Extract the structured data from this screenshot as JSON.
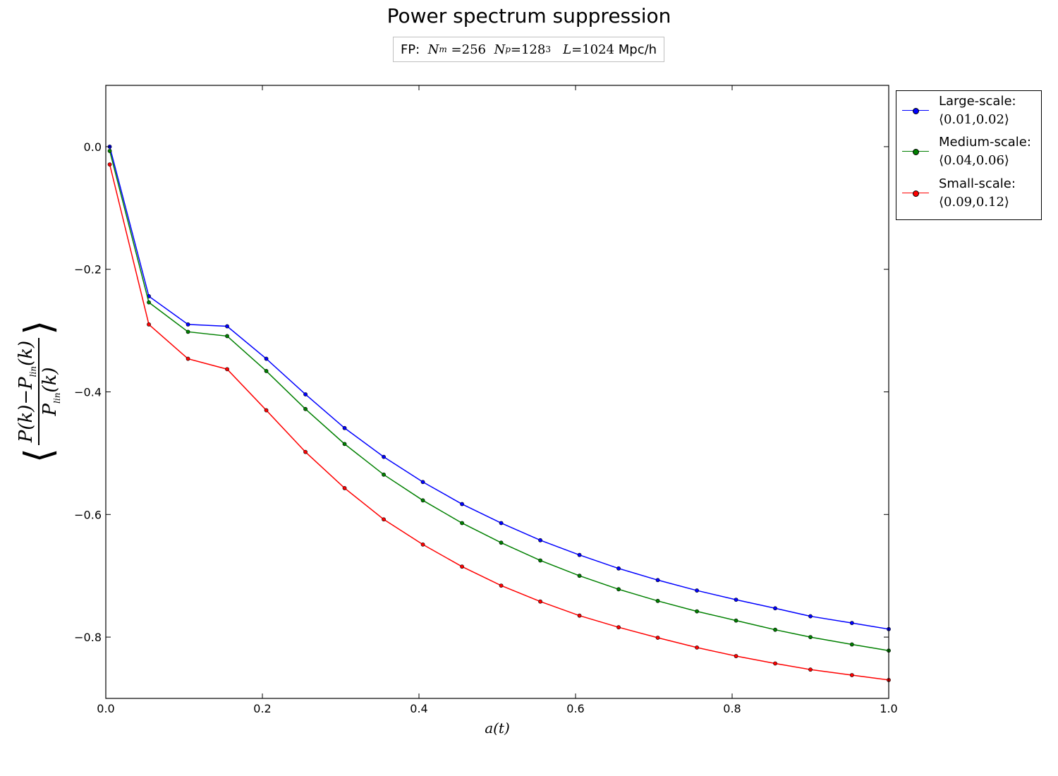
{
  "chart_data": {
    "type": "line",
    "title": "Power spectrum suppression",
    "subtitle": {
      "prefix": "FP:",
      "nm_label": "N",
      "nm_sub": "m",
      "nm_value": "=256",
      "np_label": "N",
      "np_sub": "p",
      "np_value": "=128",
      "np_exp": "3",
      "l_label": "L",
      "l_value": "=1024",
      "unit": "Mpc/h"
    },
    "xlabel": "a(t)",
    "ylabel": {
      "num": "P(k)−P",
      "num_sub": "lin",
      "num_tail": "(k)",
      "den": "P",
      "den_sub": "lin",
      "den_tail": "(k)"
    },
    "xlim": [
      0.0,
      1.0
    ],
    "ylim": [
      -0.9,
      0.1
    ],
    "xticks": [
      "0.0",
      "0.2",
      "0.4",
      "0.6",
      "0.8",
      "1.0"
    ],
    "yticks": [
      "0.0",
      "−0.2",
      "−0.4",
      "−0.6",
      "−0.8"
    ],
    "ytick_values": [
      0.0,
      -0.2,
      -0.4,
      -0.6,
      -0.8
    ],
    "xtick_values": [
      0.0,
      0.2,
      0.4,
      0.6,
      0.8,
      1.0
    ],
    "grid": false,
    "legend_position": "outside-right-top",
    "x": [
      0.005,
      0.055,
      0.105,
      0.155,
      0.205,
      0.255,
      0.305,
      0.355,
      0.405,
      0.455,
      0.505,
      0.555,
      0.605,
      0.655,
      0.705,
      0.755,
      0.805,
      0.855,
      0.9,
      0.953,
      1.0
    ],
    "series": [
      {
        "name": "Large-scale:",
        "range": "⟨0.01,0.02⟩",
        "color": "#0000ff",
        "values": [
          0.0,
          -0.244,
          -0.29,
          -0.293,
          -0.346,
          -0.404,
          -0.459,
          -0.506,
          -0.547,
          -0.583,
          -0.614,
          -0.642,
          -0.666,
          -0.688,
          -0.707,
          -0.724,
          -0.739,
          -0.753,
          -0.766,
          -0.777,
          -0.787
        ]
      },
      {
        "name": "Medium-scale:",
        "range": "⟨0.04,0.06⟩",
        "color": "#008000",
        "values": [
          -0.007,
          -0.254,
          -0.302,
          -0.309,
          -0.366,
          -0.428,
          -0.485,
          -0.535,
          -0.577,
          -0.614,
          -0.646,
          -0.675,
          -0.7,
          -0.722,
          -0.741,
          -0.758,
          -0.773,
          -0.788,
          -0.8,
          -0.812,
          -0.822
        ]
      },
      {
        "name": "Small-scale:",
        "range": "⟨0.09,0.12⟩",
        "color": "#ff0000",
        "values": [
          -0.029,
          -0.29,
          -0.346,
          -0.363,
          -0.43,
          -0.498,
          -0.557,
          -0.608,
          -0.649,
          -0.685,
          -0.716,
          -0.742,
          -0.765,
          -0.784,
          -0.801,
          -0.817,
          -0.831,
          -0.843,
          -0.853,
          -0.862,
          -0.87
        ]
      }
    ]
  }
}
